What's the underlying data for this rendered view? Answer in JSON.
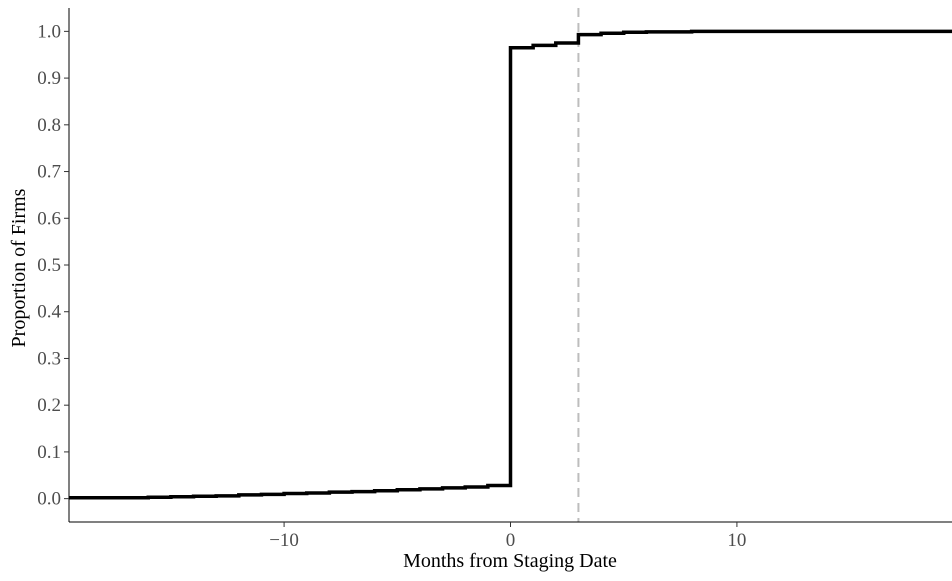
{
  "chart_data": {
    "type": "line",
    "step": true,
    "title": "",
    "xlabel": "Months from Staging Date",
    "ylabel": "Proportion of Firms",
    "xlim": [
      -19.5,
      19.5
    ],
    "ylim": [
      -0.05,
      1.05
    ],
    "x_ticks": [
      -10,
      0,
      10
    ],
    "x_tick_labels": [
      "−10",
      "0",
      "10"
    ],
    "y_ticks": [
      0.0,
      0.1,
      0.2,
      0.3,
      0.4,
      0.5,
      0.6,
      0.7,
      0.8,
      0.9,
      1.0
    ],
    "y_tick_labels": [
      "0.0",
      "0.1",
      "0.2",
      "0.3",
      "0.4",
      "0.5",
      "0.6",
      "0.7",
      "0.8",
      "0.9",
      "1.0"
    ],
    "grid": false,
    "reference_line": {
      "axis": "x",
      "value": 3,
      "style": "dashed",
      "color": "#bdbdbd"
    },
    "series": [
      {
        "color": "#000000",
        "x": [
          -19.5,
          -16,
          -15,
          -14,
          -13,
          -12,
          -11,
          -10,
          -9,
          -8,
          -7,
          -6,
          -5,
          -4,
          -3,
          -2,
          -1,
          0,
          1,
          2,
          3,
          4,
          5,
          6,
          8,
          19.5
        ],
        "y": [
          0.002,
          0.003,
          0.004,
          0.005,
          0.006,
          0.008,
          0.009,
          0.011,
          0.012,
          0.014,
          0.015,
          0.017,
          0.019,
          0.021,
          0.023,
          0.025,
          0.028,
          0.965,
          0.97,
          0.975,
          0.993,
          0.996,
          0.998,
          0.999,
          1.0,
          1.0
        ]
      }
    ]
  }
}
